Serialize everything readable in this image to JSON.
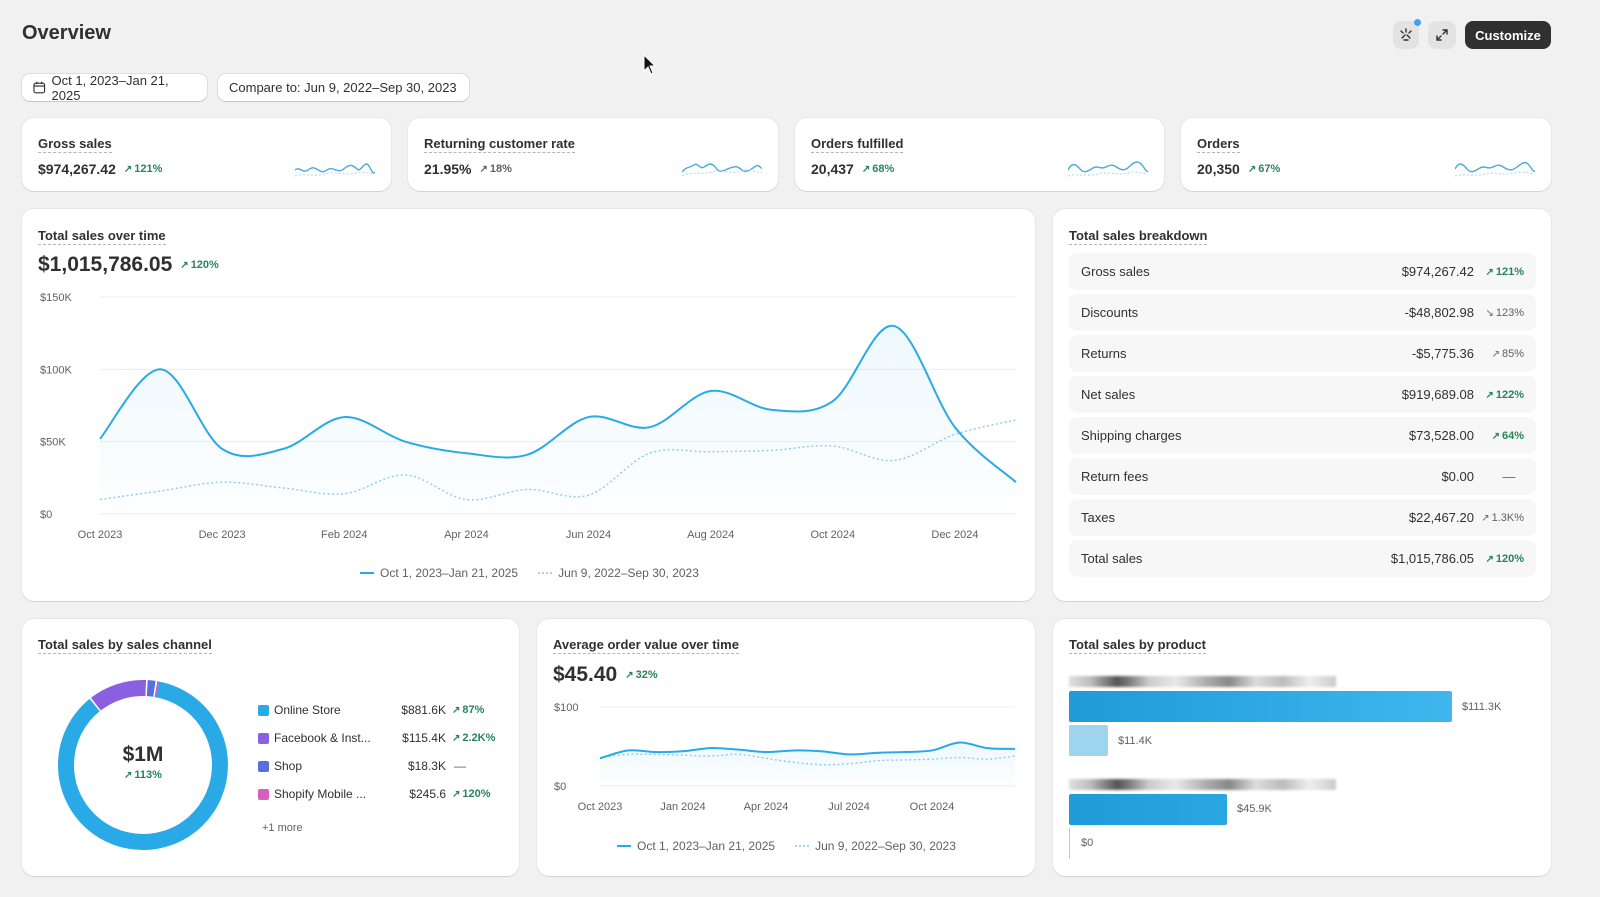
{
  "header": {
    "title": "Overview",
    "customize_label": "Customize",
    "date_range": "Oct 1, 2023–Jan 21, 2025",
    "compare_range": "Compare to: Jun 9, 2022–Sep 30, 2023"
  },
  "metrics": [
    {
      "label": "Gross sales",
      "value": "$974,267.42",
      "change": "121%",
      "trend": "up"
    },
    {
      "label": "Returning customer rate",
      "value": "21.95%",
      "change": "18%",
      "trend": "neutral"
    },
    {
      "label": "Orders fulfilled",
      "value": "20,437",
      "change": "68%",
      "trend": "up"
    },
    {
      "label": "Orders",
      "value": "20,350",
      "change": "67%",
      "trend": "up"
    }
  ],
  "total_sales": {
    "title": "Total sales over time",
    "value": "$1,015,786.05",
    "change": "120%",
    "legend_current": "Oct 1, 2023–Jan 21, 2025",
    "legend_previous": "Jun 9, 2022–Sep 30, 2023"
  },
  "breakdown": {
    "title": "Total sales breakdown",
    "rows": [
      {
        "label": "Gross sales",
        "value": "$974,267.42",
        "change": "121%",
        "style": "green"
      },
      {
        "label": "Discounts",
        "value": "-$48,802.98",
        "change": "123%",
        "style": "grey-down"
      },
      {
        "label": "Returns",
        "value": "-$5,775.36",
        "change": "85%",
        "style": "grey-up"
      },
      {
        "label": "Net sales",
        "value": "$919,689.08",
        "change": "122%",
        "style": "green"
      },
      {
        "label": "Shipping charges",
        "value": "$73,528.00",
        "change": "64%",
        "style": "green"
      },
      {
        "label": "Return fees",
        "value": "$0.00",
        "change": "—",
        "style": "dash"
      },
      {
        "label": "Taxes",
        "value": "$22,467.20",
        "change": "1.3K%",
        "style": "grey-up"
      },
      {
        "label": "Total sales",
        "value": "$1,015,786.05",
        "change": "120%",
        "style": "green"
      }
    ]
  },
  "channels": {
    "title": "Total sales by sales channel",
    "center_value": "$1M",
    "center_change": "113%",
    "more_label": "+1 more",
    "items": [
      {
        "name": "Online Store",
        "value": "$881.6K",
        "change": "87%",
        "color": "#29aae6"
      },
      {
        "name": "Facebook & Inst...",
        "value": "$115.4K",
        "change": "2.2K%",
        "color": "#8a5fe0"
      },
      {
        "name": "Shop",
        "value": "$18.3K",
        "change": "—",
        "color": "#5a6ee0"
      },
      {
        "name": "Shopify Mobile ...",
        "value": "$245.6",
        "change": "120%",
        "color": "#d85fbf"
      }
    ]
  },
  "aov": {
    "title": "Average order value over time",
    "value": "$45.40",
    "change": "32%",
    "legend_current": "Oct 1, 2023–Jan 21, 2025",
    "legend_previous": "Jun 9, 2022–Sep 30, 2023"
  },
  "products": {
    "title": "Total sales by product",
    "bar_labels": [
      "$111.3K",
      "$11.4K",
      "$45.9K",
      "$0"
    ]
  },
  "chart_data": [
    {
      "type": "line",
      "title": "Total sales over time",
      "x_ticks": [
        "Oct 2023",
        "Dec 2023",
        "Feb 2024",
        "Apr 2024",
        "Jun 2024",
        "Aug 2024",
        "Oct 2024",
        "Dec 2024"
      ],
      "y_ticks": [
        "$0",
        "$50K",
        "$100K",
        "$150K"
      ],
      "ylim": [
        0,
        150000
      ],
      "x": [
        "Oct 2023",
        "Nov 2023",
        "Dec 2023",
        "Jan 2024",
        "Feb 2024",
        "Mar 2024",
        "Apr 2024",
        "May 2024",
        "Jun 2024",
        "Jul 2024",
        "Aug 2024",
        "Sep 2024",
        "Oct 2024",
        "Nov 2024",
        "Dec 2024",
        "Jan 2025"
      ],
      "series": [
        {
          "name": "Oct 1, 2023–Jan 21, 2025",
          "values": [
            52000,
            100000,
            45000,
            45000,
            67000,
            50000,
            42000,
            41000,
            67000,
            60000,
            85000,
            72000,
            78000,
            130000,
            60000,
            22000
          ]
        },
        {
          "name": "Jun 9, 2022–Sep 30, 2023",
          "values": [
            10000,
            16000,
            22000,
            18000,
            14000,
            27000,
            10000,
            17000,
            13000,
            42000,
            43000,
            44000,
            47000,
            37000,
            55000,
            65000
          ]
        }
      ]
    },
    {
      "type": "line",
      "title": "Average order value over time",
      "x_ticks": [
        "Oct 2023",
        "Jan 2024",
        "Apr 2024",
        "Jul 2024",
        "Oct 2024"
      ],
      "y_ticks": [
        "$0",
        "$100"
      ],
      "ylim": [
        0,
        100
      ],
      "x": [
        "Oct 2023",
        "Nov 2023",
        "Dec 2023",
        "Jan 2024",
        "Feb 2024",
        "Mar 2024",
        "Apr 2024",
        "May 2024",
        "Jun 2024",
        "Jul 2024",
        "Aug 2024",
        "Sep 2024",
        "Oct 2024",
        "Nov 2024",
        "Dec 2024",
        "Jan 2025"
      ],
      "series": [
        {
          "name": "Oct 1, 2023–Jan 21, 2025",
          "values": [
            35,
            45,
            43,
            44,
            48,
            46,
            43,
            45,
            44,
            40,
            42,
            43,
            45,
            55,
            48,
            47
          ]
        },
        {
          "name": "Jun 9, 2022–Sep 30, 2023",
          "values": [
            36,
            40,
            40,
            39,
            38,
            40,
            35,
            30,
            27,
            28,
            32,
            33,
            34,
            36,
            34,
            38
          ]
        }
      ]
    },
    {
      "type": "pie",
      "title": "Total sales by sales channel",
      "categories": [
        "Online Store",
        "Facebook & Inst...",
        "Shop",
        "Shopify Mobile ..."
      ],
      "values": [
        881600,
        115400,
        18300,
        245.6
      ]
    },
    {
      "type": "bar",
      "title": "Total sales by product",
      "series": [
        {
          "values": [
            111300,
            11400
          ]
        },
        {
          "values": [
            45900,
            0
          ]
        }
      ]
    }
  ]
}
